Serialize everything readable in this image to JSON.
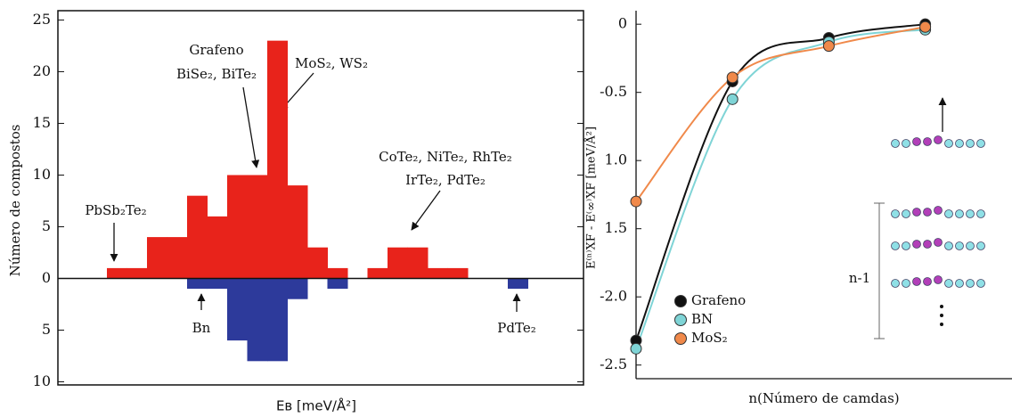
{
  "chart_data": [
    {
      "type": "bar",
      "y_label": "Número de compostos",
      "x_label": "Eʙ [meV/Å²]",
      "categories": [
        null,
        null,
        null,
        null,
        null,
        null,
        null,
        null,
        null,
        null,
        null,
        null,
        null,
        null,
        null,
        null,
        null,
        null,
        null,
        null,
        null,
        null
      ],
      "series": [
        {
          "color": "#e8231b",
          "values": [
            1,
            1,
            4,
            4,
            8,
            6,
            10,
            10,
            23,
            9,
            3,
            1,
            0,
            1,
            3,
            3,
            1,
            1,
            0,
            0,
            0,
            0
          ]
        },
        {
          "color": "#2d3a9b",
          "values": [
            0,
            0,
            0,
            0,
            -1,
            -1,
            -6,
            -8,
            -8,
            -2,
            0,
            -1,
            0,
            0,
            0,
            0,
            0,
            0,
            0,
            0,
            -1,
            0
          ]
        }
      ],
      "ylim": [
        -10.3,
        25.9
      ],
      "yticks": [
        25,
        20,
        15,
        10,
        5,
        0,
        {
          "value": -5,
          "label": "5"
        },
        {
          "value": -10,
          "label": "10"
        }
      ],
      "annotations": [
        "Grafeno",
        "BiSe₂, BiTe₂",
        "MoS₂, WS₂",
        "CoTe₂, NiTe₂, RhTe₂",
        "IrTe₂, PdTe₂",
        "PbSb₂Te₂",
        "Bn",
        "PdTe₂"
      ]
    },
    {
      "type": "line",
      "y_label": "E⁽ⁿ⁾XF - E⁽∞⁾XF [meV/Å²]",
      "x_label": "n(Número de camdas)",
      "x": [
        1,
        2,
        3,
        4
      ],
      "xlim": [
        1,
        4.9
      ],
      "ylim": [
        -2.6,
        0.06
      ],
      "yticks": [
        0,
        -0.5,
        {
          "value": -1.0,
          "label": "1.0"
        },
        {
          "value": -1.5,
          "label": "1.5"
        },
        {
          "value": -2.0,
          "label": "-2.0"
        },
        -2.5
      ],
      "series": [
        {
          "name": "Grafeno",
          "color": "#111111",
          "values": [
            -2.32,
            -0.42,
            -0.1,
            0.0
          ]
        },
        {
          "name": "BN",
          "color": "#7fd4d6",
          "values": [
            -2.38,
            -0.55,
            -0.13,
            -0.04
          ]
        },
        {
          "name": "MoS₂",
          "color": "#f0894a",
          "values": [
            -1.3,
            -0.39,
            -0.16,
            -0.02
          ]
        }
      ],
      "annotations": [
        "n-1"
      ]
    }
  ]
}
